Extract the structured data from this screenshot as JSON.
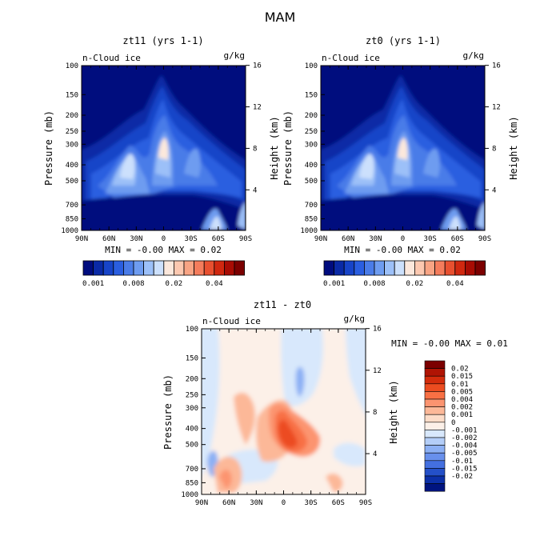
{
  "title": "MAM",
  "panels": [
    {
      "title": "zt11 (yrs 1-1)",
      "field_label": "n-Cloud ice",
      "units": "g/kg",
      "ylabel": "Pressure (mb)",
      "y2label": "Height (km)",
      "stats": "MIN =  -0.00   MAX =  0.02"
    },
    {
      "title": "zt0 (yrs 1-1)",
      "field_label": "n-Cloud ice",
      "units": "g/kg",
      "ylabel": "Pressure (mb)",
      "y2label": "Height (km)",
      "stats": "MIN =  -0.00   MAX =  0.02"
    },
    {
      "title": "zt11 - zt0",
      "field_label": "n-Cloud ice",
      "units": "g/kg",
      "ylabel": "Pressure (mb)",
      "y2label": "Height (km)",
      "stats": "MIN =  -0.00   MAX =  0.01"
    }
  ],
  "chart_data": [
    {
      "type": "heatmap",
      "title": "zt11 (yrs 1-1)",
      "xlabel": "",
      "ylabel": "Pressure (mb)",
      "y2label": "Height (km)",
      "x_ticks": [
        "90N",
        "60N",
        "30N",
        "0",
        "30S",
        "60S",
        "90S"
      ],
      "y_ticks": [
        100,
        150,
        200,
        250,
        300,
        400,
        500,
        700,
        850,
        1000
      ],
      "y2_ticks": [
        4,
        8,
        12,
        16
      ],
      "min": -0.0,
      "max": 0.02
    },
    {
      "type": "heatmap",
      "title": "zt0 (yrs 1-1)",
      "xlabel": "",
      "ylabel": "Pressure (mb)",
      "y2label": "Height (km)",
      "x_ticks": [
        "90N",
        "60N",
        "30N",
        "0",
        "30S",
        "60S",
        "90S"
      ],
      "y_ticks": [
        100,
        150,
        200,
        250,
        300,
        400,
        500,
        700,
        850,
        1000
      ],
      "y2_ticks": [
        4,
        8,
        12,
        16
      ],
      "min": -0.0,
      "max": 0.02
    },
    {
      "type": "heatmap",
      "title": "zt11 - zt0",
      "xlabel": "",
      "ylabel": "Pressure (mb)",
      "y2label": "Height (km)",
      "x_ticks": [
        "90N",
        "60N",
        "30N",
        "0",
        "30S",
        "60S",
        "90S"
      ],
      "y_ticks": [
        100,
        150,
        200,
        250,
        300,
        400,
        500,
        700,
        850,
        1000
      ],
      "y2_ticks": [
        4,
        8,
        12,
        16
      ],
      "min": -0.0,
      "max": 0.01
    }
  ],
  "colorbar_top": {
    "colors": [
      "#000c7e",
      "#0a2aa6",
      "#1744c8",
      "#2a5ee0",
      "#4a7ce8",
      "#6e9cf0",
      "#9cc0f8",
      "#cce0fc",
      "#fce8dc",
      "#fcc8b0",
      "#f8a484",
      "#f47c5c",
      "#e85030",
      "#d02810",
      "#a80c04",
      "#7c0000"
    ],
    "labels": [
      "0.001",
      "0.008",
      "0.02",
      "0.04"
    ]
  },
  "colorbar_diff": {
    "colors": [
      "#7c0000",
      "#b01404",
      "#d42c0c",
      "#ec4c20",
      "#f87044",
      "#fc9470",
      "#fcb898",
      "#fcdcc8",
      "#fcf0e8",
      "#d8e8fc",
      "#b4cef8",
      "#8cb0f4",
      "#6890ec",
      "#4470e0",
      "#2450c8",
      "#0c30a8",
      "#001480"
    ],
    "labels": [
      "0.02",
      "0.015",
      "0.01",
      "0.005",
      "0.004",
      "0.002",
      "0.001",
      "0",
      "-0.001",
      "-0.002",
      "-0.004",
      "-0.005",
      "-0.01",
      "-0.015",
      "-0.02"
    ]
  }
}
